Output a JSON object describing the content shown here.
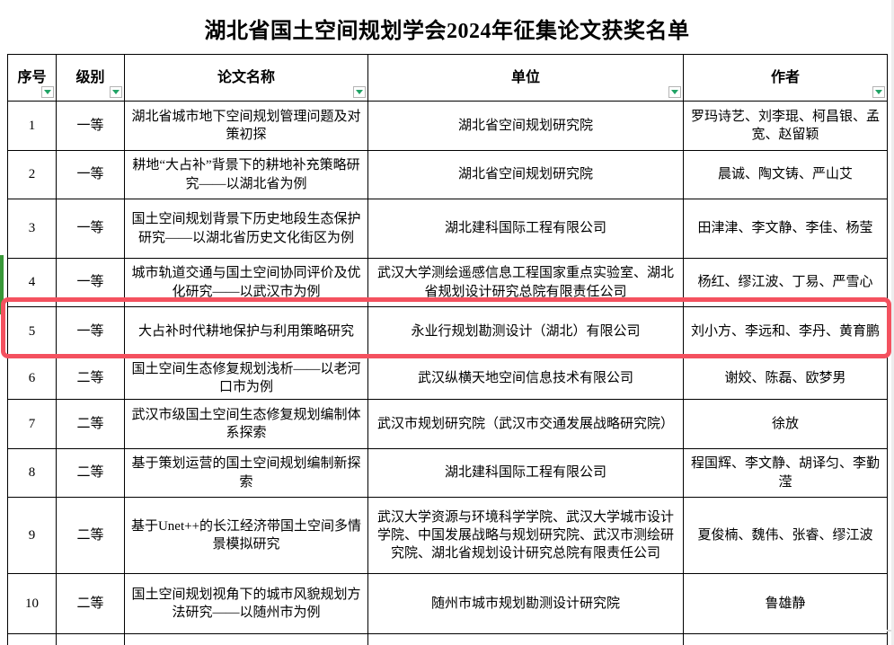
{
  "title": "湖北省国土空间规划学会2024年征集论文获奖名单",
  "table": {
    "columns": [
      "序号",
      "级别",
      "论文名称",
      "单位",
      "作者"
    ],
    "rows": [
      {
        "no": "1",
        "level": "一等",
        "paper": "湖北省城市地下空间规划管理问题及对策初探",
        "org": "湖北省空间规划研究院",
        "authors": "罗玛诗艺、刘李琨、柯昌银、孟宽、赵留颖"
      },
      {
        "no": "2",
        "level": "一等",
        "paper": "耕地“大占补”背景下的耕地补充策略研究——以湖北省为例",
        "org": "湖北省空间规划研究院",
        "authors": "晨诚、陶文铸、严山艾"
      },
      {
        "no": "3",
        "level": "一等",
        "paper": "国土空间规划背景下历史地段生态保护研究——以湖北省历史文化街区为例",
        "org": "湖北建科国际工程有限公司",
        "authors": "田津津、李文静、李佳、杨莹"
      },
      {
        "no": "4",
        "level": "一等",
        "paper": "城市轨道交通与国土空间协同评价及优化研究——以武汉市为例",
        "org": "武汉大学测绘遥感信息工程国家重点实验室、湖北省规划设计研究总院有限责任公司",
        "authors": "杨红、缪江波、丁易、严雪心"
      },
      {
        "no": "5",
        "level": "一等",
        "paper": "大占补时代耕地保护与利用策略研究",
        "org": "永业行规划勘测设计（湖北）有限公司",
        "authors": "刘小方、李远和、李丹、黄育鹏"
      },
      {
        "no": "6",
        "level": "二等",
        "paper": "国土空间生态修复规划浅析——以老河口市为例",
        "org": "武汉纵横天地空间信息技术有限公司",
        "authors": "谢姣、陈磊、欧梦男"
      },
      {
        "no": "7",
        "level": "二等",
        "paper": "武汉市级国土空间生态修复规划编制体系探索",
        "org": "武汉市规划研究院（武汉市交通发展战略研究院）",
        "authors": "徐放"
      },
      {
        "no": "8",
        "level": "二等",
        "paper": "基于策划运营的国土空间规划编制新探索",
        "org": "湖北建科国际工程有限公司",
        "authors": "程国辉、李文静、胡译匀、李勤滢"
      },
      {
        "no": "9",
        "level": "二等",
        "paper": "基于Unet++的长江经济带国土空间多情景模拟研究",
        "org": "武汉大学资源与环境科学学院、武汉大学城市设计学院、中国发展战略与规划研究院、武汉市测绘研究院、湖北省规划设计研究总院有限责任公司",
        "authors": "夏俊楠、魏伟、张睿、缪江波"
      },
      {
        "no": "10",
        "level": "二等",
        "paper": "国土空间规划视角下的城市风貌规划方法研究——以随州市为例",
        "org": "随州市城市规划勘测设计研究院",
        "authors": "鲁雄静"
      }
    ]
  },
  "icons": {
    "filter": "filter-dropdown-icon"
  },
  "highlight": {
    "highlighted_row_no": "5"
  },
  "colors": {
    "highlight_border": "#f4515f",
    "filter_icon_green": "#21a366",
    "left_marker_green": "#389738",
    "table_border": "#000000"
  }
}
